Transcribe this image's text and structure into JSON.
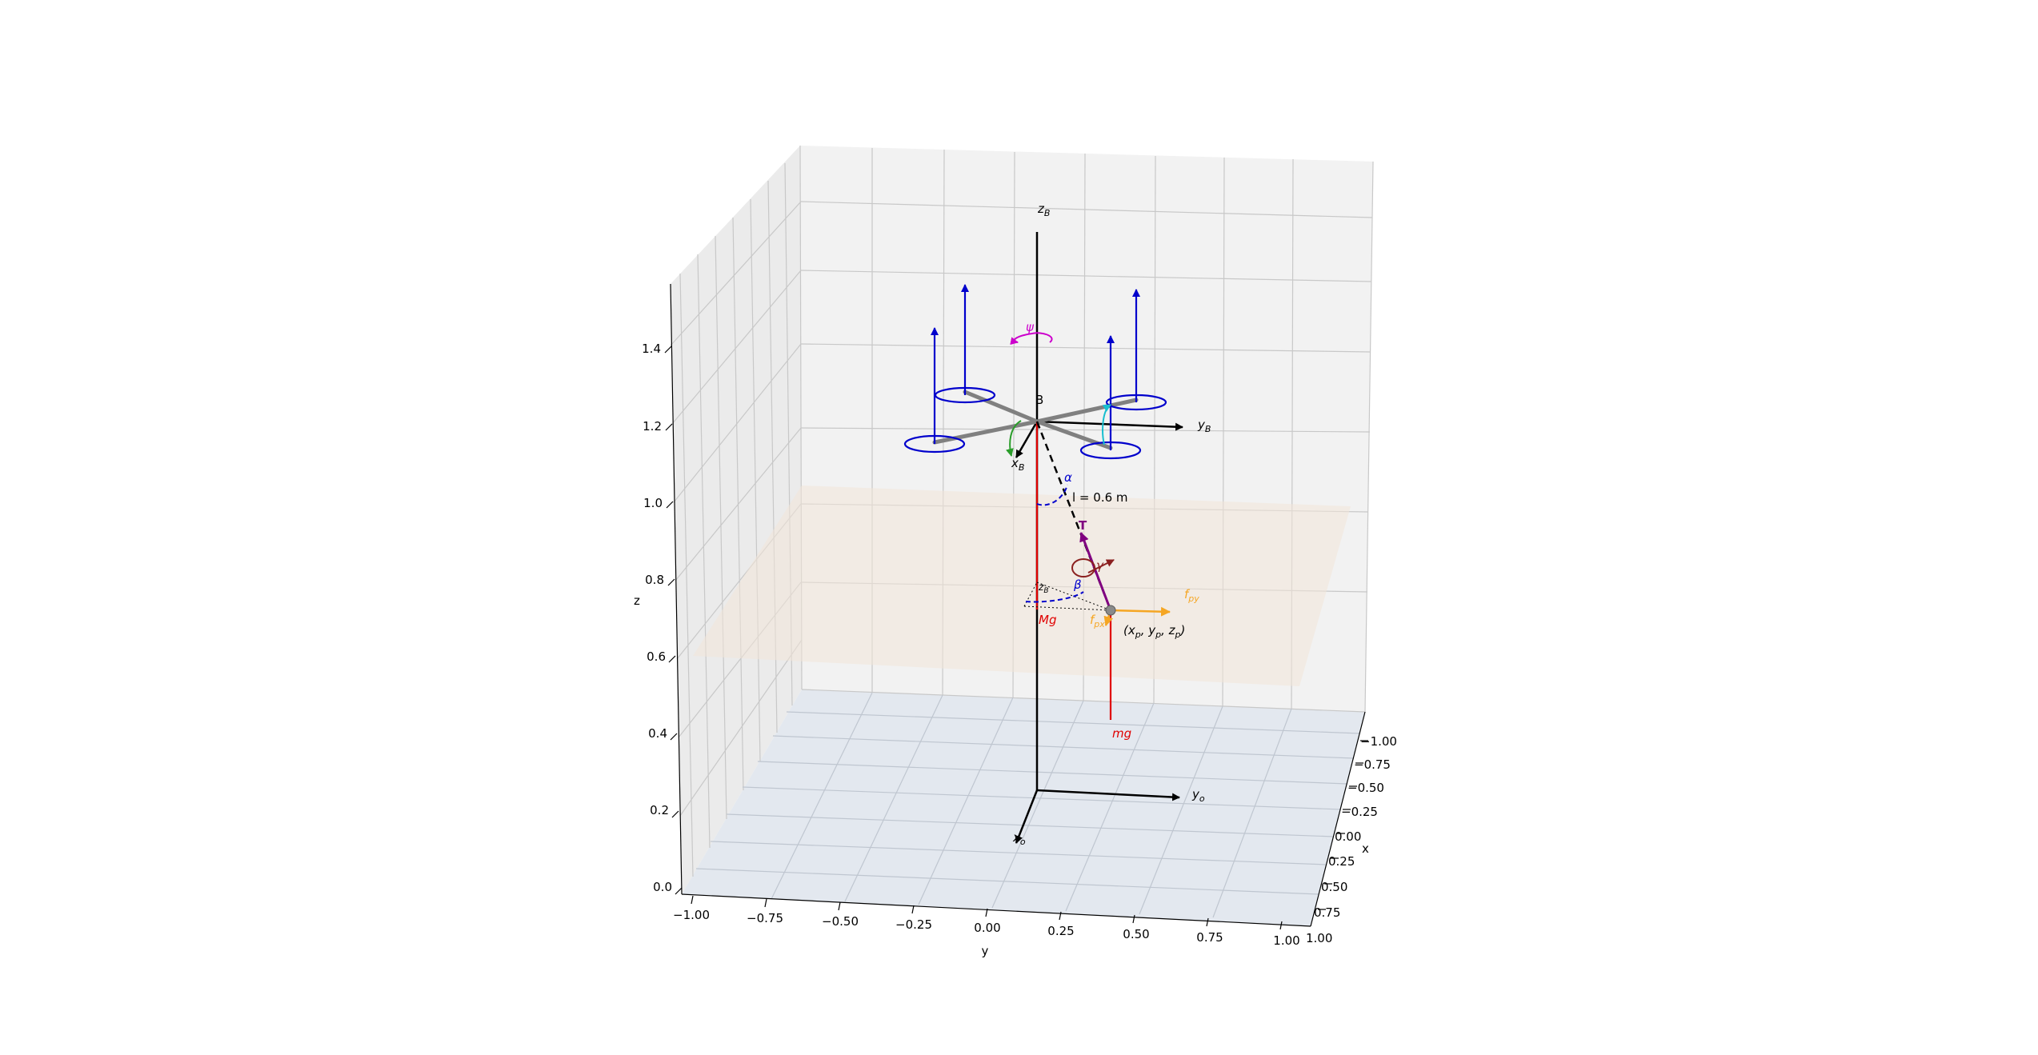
{
  "axes": {
    "x": {
      "label": "x",
      "ticks": [
        "−1.00",
        "−0.75",
        "−0.50",
        "−0.25",
        "0.00",
        "0.25",
        "0.50",
        "0.75",
        "1.00"
      ]
    },
    "y": {
      "label": "y",
      "ticks": [
        "−1.00",
        "−0.75",
        "−0.50",
        "−0.25",
        "0.00",
        "0.25",
        "0.50",
        "0.75",
        "1.00"
      ]
    },
    "z": {
      "label": "z",
      "ticks": [
        "0.0",
        "0.2",
        "0.4",
        "0.6",
        "0.8",
        "1.0",
        "1.2",
        "1.4"
      ]
    }
  },
  "labels": {
    "body_point": "B",
    "z_body": "z",
    "z_body_sub": "B",
    "y_body": "y",
    "y_body_sub": "B",
    "x_body": "x",
    "x_body_sub": "B",
    "yaw": "ψ",
    "alpha": "α",
    "cable_length": "l = 0.6 m",
    "tension": "T",
    "gamma": "γ",
    "beta": "β",
    "z_b_small": "z",
    "z_b_small_sub": "B",
    "load_weight": "Mg",
    "payload_weight": "mg",
    "f_px": "f",
    "f_px_sub": "px",
    "f_py": "f",
    "f_py_sub": "py",
    "payload_pos": "(x",
    "payload_pos_sub_p1": "p",
    "payload_pos_mid1": ", y",
    "payload_pos_sub_p2": "p",
    "payload_pos_mid2": ", z",
    "payload_pos_sub_p3": "p",
    "payload_pos_end": ")",
    "y_world": "y",
    "y_world_sub": "o",
    "x_world": "x",
    "x_world_sub": "o"
  },
  "colors": {
    "rotor": "#0000cc",
    "arm": "#808080",
    "weight": "#e00000",
    "tension": "#800080",
    "force": "#f5a623",
    "yaw": "#cc00cc",
    "roll": "#2a9d2a",
    "pitch": "#17becf",
    "angle": "#0000cc",
    "pane": "#f2f2f2",
    "floor": "#e3e8ef",
    "plane": "#f3ece6"
  }
}
